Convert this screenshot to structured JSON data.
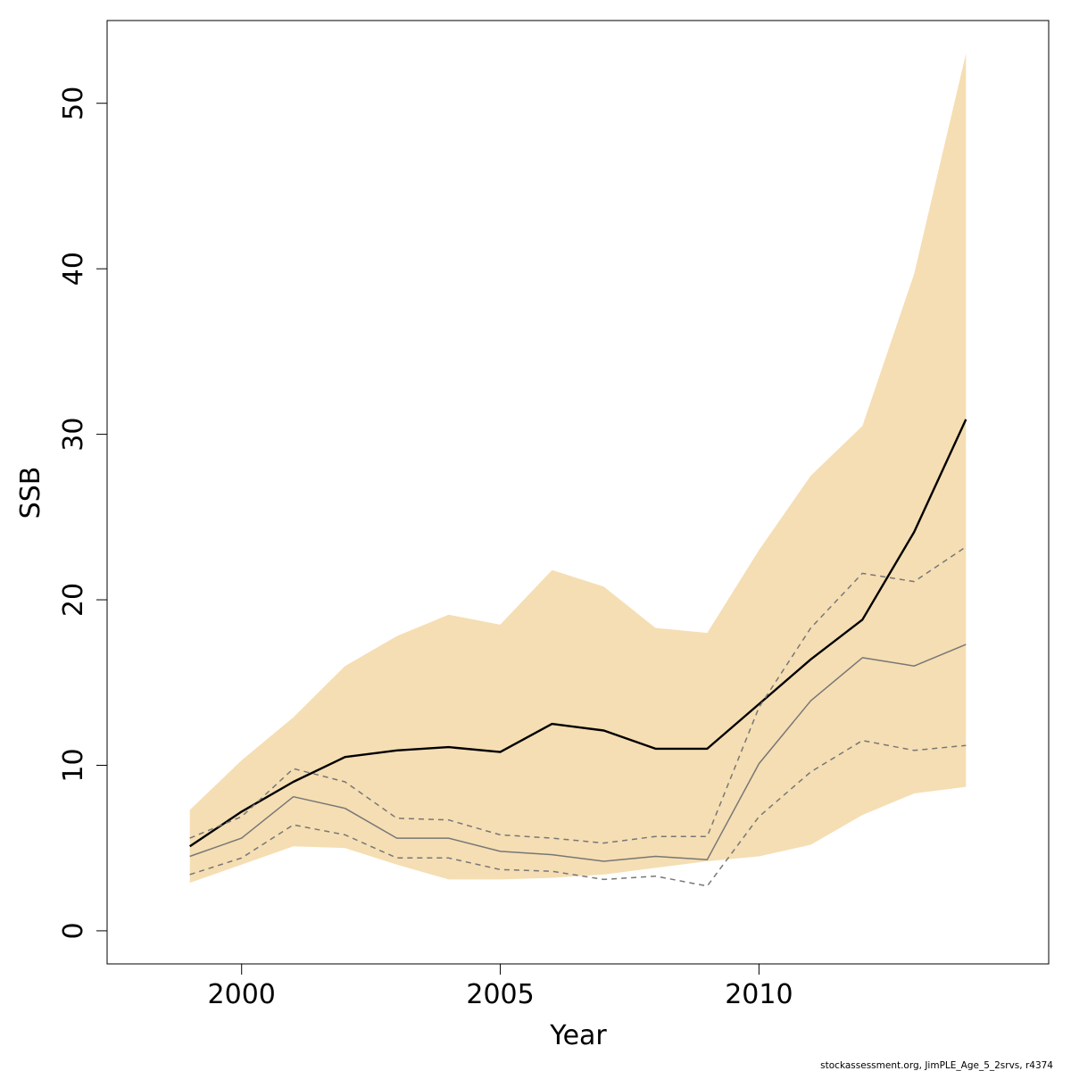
{
  "chart_data": {
    "type": "area",
    "xlabel": "Year",
    "ylabel": "SSB",
    "xlim": [
      1997.4,
      2015.6
    ],
    "ylim": [
      -2,
      55
    ],
    "x_ticks": [
      2000,
      2005,
      2010
    ],
    "y_ticks": [
      0,
      10,
      20,
      30,
      40,
      50
    ],
    "x": [
      1999,
      2000,
      2001,
      2002,
      2003,
      2004,
      2005,
      2006,
      2007,
      2008,
      2009,
      2010,
      2011,
      2012,
      2013,
      2014
    ],
    "band": {
      "lower": [
        2.9,
        4.0,
        5.1,
        5.0,
        4.0,
        3.1,
        3.1,
        3.2,
        3.4,
        3.8,
        4.2,
        4.5,
        5.2,
        7.0,
        8.3,
        8.7
      ],
      "upper": [
        7.3,
        10.3,
        12.9,
        16.0,
        17.8,
        19.1,
        18.5,
        21.8,
        20.8,
        18.3,
        18.0,
        23.0,
        27.5,
        30.5,
        39.7,
        53.0
      ],
      "color": "#f5deb3"
    },
    "series": [
      {
        "values": [
          5.1,
          7.2,
          9.0,
          10.5,
          10.9,
          11.1,
          10.8,
          12.5,
          12.1,
          11.0,
          11.0,
          13.7,
          16.4,
          18.8,
          24.1,
          30.9
        ],
        "color": "#000000",
        "style": "solid",
        "width": "thick"
      },
      {
        "values": [
          4.5,
          5.6,
          8.1,
          7.4,
          5.6,
          5.6,
          4.8,
          4.6,
          4.2,
          4.5,
          4.3,
          10.1,
          13.9,
          16.5,
          16.0,
          17.3
        ],
        "color": "#777777",
        "style": "solid",
        "width": "thin"
      },
      {
        "values": [
          5.6,
          6.9,
          9.8,
          9.0,
          6.8,
          6.7,
          5.8,
          5.6,
          5.3,
          5.7,
          5.7,
          13.5,
          18.3,
          21.6,
          21.1,
          23.2
        ],
        "color": "#777777",
        "style": "dashed",
        "width": "thin"
      },
      {
        "values": [
          3.4,
          4.4,
          6.4,
          5.8,
          4.4,
          4.4,
          3.7,
          3.6,
          3.1,
          3.3,
          2.7,
          6.9,
          9.6,
          11.5,
          10.9,
          11.2
        ],
        "color": "#777777",
        "style": "dashed",
        "width": "thin"
      }
    ],
    "grid": false,
    "legend": "none"
  },
  "footer": "stockassessment.org, JimPLE_Age_5_2srvs, r4374"
}
